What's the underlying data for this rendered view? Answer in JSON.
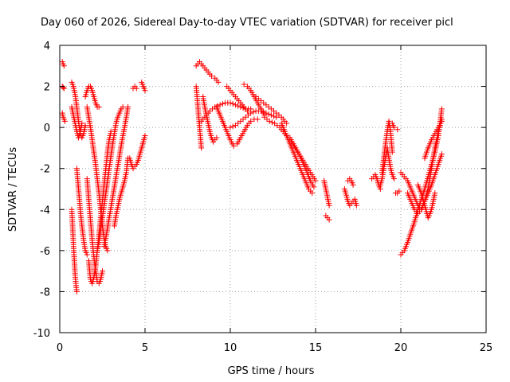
{
  "chart_data": {
    "type": "scatter",
    "title": "Day 060 of 2026, Sidereal Day-to-day VTEC variation (SDTVAR) for receiver picl",
    "xlabel": "GPS time / hours",
    "ylabel": "SDTVAR / TECUs",
    "xlim": [
      0,
      25
    ],
    "ylim": [
      -10,
      4
    ],
    "xticks": [
      0,
      5,
      10,
      15,
      20,
      25
    ],
    "yticks": [
      -10,
      -8,
      -6,
      -4,
      -2,
      0,
      2,
      4
    ],
    "grid": true,
    "marker": "+",
    "color": "#ff0000",
    "series": [
      {
        "name": "trace-01",
        "x": [
          0.15,
          0.2,
          0.25
        ],
        "y": [
          3.2,
          3.1,
          3.0
        ]
      },
      {
        "name": "trace-02",
        "x": [
          0.15,
          0.2,
          0.25
        ],
        "y": [
          2.0,
          1.95,
          1.9
        ]
      },
      {
        "name": "trace-03",
        "x": [
          0.15,
          0.2,
          0.3
        ],
        "y": [
          0.7,
          0.5,
          0.3
        ]
      },
      {
        "name": "trace-04",
        "x": [
          0.7,
          0.8,
          0.9,
          1.0,
          1.1,
          1.2,
          1.3,
          1.4,
          1.5
        ],
        "y": [
          2.2,
          2.0,
          1.6,
          1.0,
          0.3,
          -0.3,
          -0.5,
          -0.3,
          0.1
        ]
      },
      {
        "name": "trace-05",
        "x": [
          0.7,
          0.8,
          0.9,
          1.0,
          1.1,
          1.2,
          1.3
        ],
        "y": [
          1.0,
          0.6,
          0.2,
          -0.2,
          -0.5,
          -0.2,
          0.2
        ]
      },
      {
        "name": "trace-06",
        "x": [
          0.7,
          0.75,
          0.8,
          0.85,
          0.9,
          0.95,
          1.0
        ],
        "y": [
          -4.0,
          -4.8,
          -5.6,
          -6.4,
          -7.2,
          -7.7,
          -8.0
        ]
      },
      {
        "name": "trace-07",
        "x": [
          1.0,
          1.1,
          1.2,
          1.3,
          1.4,
          1.5,
          1.6
        ],
        "y": [
          -2.0,
          -3.0,
          -4.0,
          -4.8,
          -5.5,
          -6.0,
          -6.2
        ]
      },
      {
        "name": "trace-08",
        "x": [
          1.5,
          1.6,
          1.7,
          1.8,
          1.9,
          2.0,
          2.1,
          2.2,
          2.3
        ],
        "y": [
          1.5,
          1.8,
          2.0,
          2.0,
          1.8,
          1.5,
          1.2,
          1.0,
          1.0
        ]
      },
      {
        "name": "trace-09",
        "x": [
          1.6,
          1.7,
          1.8,
          1.9,
          2.0,
          2.1,
          2.2,
          2.3,
          2.4,
          2.5,
          2.6,
          2.7,
          2.8
        ],
        "y": [
          1.0,
          0.5,
          0.0,
          -0.6,
          -1.2,
          -1.8,
          -2.5,
          -3.2,
          -4.0,
          -4.8,
          -5.4,
          -5.8,
          -6.0
        ]
      },
      {
        "name": "trace-10",
        "x": [
          1.6,
          1.7,
          1.8,
          1.9,
          2.0,
          2.1,
          2.2,
          2.3,
          2.4,
          2.5
        ],
        "y": [
          -2.5,
          -3.5,
          -4.5,
          -5.5,
          -6.3,
          -7.0,
          -7.5,
          -7.6,
          -7.4,
          -7.0
        ]
      },
      {
        "name": "trace-11",
        "x": [
          1.7,
          1.8,
          1.9,
          2.0,
          2.1,
          2.2,
          2.3,
          2.4,
          2.5,
          2.6,
          2.7,
          2.8,
          2.9,
          3.0
        ],
        "y": [
          -6.5,
          -7.4,
          -7.6,
          -7.3,
          -6.8,
          -6.0,
          -5.2,
          -4.4,
          -3.6,
          -2.8,
          -2.0,
          -1.2,
          -0.6,
          -0.2
        ]
      },
      {
        "name": "trace-12",
        "x": [
          2.2,
          2.3,
          2.4,
          2.5,
          2.6,
          2.7,
          2.8,
          2.9,
          3.0,
          3.1,
          3.2,
          3.3,
          3.4,
          3.5,
          3.6,
          3.7
        ],
        "y": [
          -6.0,
          -5.6,
          -5.0,
          -4.4,
          -3.8,
          -3.2,
          -2.6,
          -2.0,
          -1.4,
          -0.8,
          -0.3,
          0.2,
          0.5,
          0.7,
          0.9,
          1.0
        ]
      },
      {
        "name": "trace-13",
        "x": [
          2.6,
          2.7,
          2.8,
          2.9,
          3.0,
          3.1,
          3.2,
          3.3,
          3.4,
          3.5,
          3.6,
          3.7,
          3.8,
          3.9,
          4.0
        ],
        "y": [
          -5.8,
          -5.4,
          -4.9,
          -4.4,
          -3.9,
          -3.4,
          -2.9,
          -2.4,
          -1.9,
          -1.4,
          -0.9,
          -0.4,
          0.0,
          0.5,
          1.0
        ]
      },
      {
        "name": "trace-14",
        "x": [
          3.2,
          3.3,
          3.4,
          3.5,
          3.6,
          3.7,
          3.8,
          3.9,
          4.0
        ],
        "y": [
          -4.8,
          -4.3,
          -3.9,
          -3.5,
          -3.2,
          -2.9,
          -2.6,
          -2.2,
          -1.5
        ]
      },
      {
        "name": "trace-15",
        "x": [
          4.1,
          4.2,
          4.3,
          4.4,
          4.5,
          4.6,
          4.7,
          4.8,
          4.9,
          5.0
        ],
        "y": [
          -1.5,
          -1.8,
          -2.0,
          -1.9,
          -1.8,
          -1.6,
          -1.3,
          -1.0,
          -0.7,
          -0.4
        ]
      },
      {
        "name": "trace-16",
        "x": [
          4.3,
          4.4,
          4.5
        ],
        "y": [
          1.9,
          2.0,
          1.9
        ]
      },
      {
        "name": "trace-17",
        "x": [
          4.8,
          4.85,
          4.9,
          4.95,
          5.0
        ],
        "y": [
          2.2,
          2.1,
          2.0,
          1.9,
          1.8
        ]
      },
      {
        "name": "trace-18",
        "x": [
          8.0,
          8.1,
          8.2,
          8.3,
          8.5,
          8.7,
          8.9,
          9.1,
          9.3
        ],
        "y": [
          3.0,
          3.1,
          3.2,
          3.1,
          2.9,
          2.7,
          2.5,
          2.4,
          2.2
        ]
      },
      {
        "name": "trace-19",
        "x": [
          8.0,
          8.05,
          8.1,
          8.15,
          8.2,
          8.25,
          8.3
        ],
        "y": [
          2.0,
          1.5,
          1.0,
          0.5,
          0.0,
          -0.5,
          -1.0
        ]
      },
      {
        "name": "trace-20",
        "x": [
          8.4,
          8.5,
          8.6,
          8.7,
          8.8,
          8.9,
          9.0,
          9.1,
          9.2
        ],
        "y": [
          1.5,
          1.0,
          0.6,
          0.2,
          -0.2,
          -0.5,
          -0.7,
          -0.6,
          -0.5
        ]
      },
      {
        "name": "trace-21",
        "x": [
          8.2,
          8.5,
          8.8,
          9.1,
          9.4,
          9.7,
          10.0,
          10.3,
          10.6,
          10.9,
          11.2
        ],
        "y": [
          0.2,
          0.5,
          0.8,
          1.0,
          1.1,
          1.2,
          1.2,
          1.1,
          1.0,
          0.9,
          0.9
        ]
      },
      {
        "name": "trace-22",
        "x": [
          9.2,
          9.4,
          9.6,
          9.8,
          10.0,
          10.2,
          10.4,
          10.6,
          10.8,
          11.0,
          11.2,
          11.4,
          11.6
        ],
        "y": [
          1.0,
          0.6,
          0.2,
          -0.2,
          -0.6,
          -0.9,
          -0.8,
          -0.5,
          -0.2,
          0.1,
          0.3,
          0.4,
          0.4
        ]
      },
      {
        "name": "trace-23",
        "x": [
          9.8,
          10.0,
          10.2,
          10.4,
          10.6,
          10.8,
          11.0
        ],
        "y": [
          2.0,
          1.8,
          1.6,
          1.4,
          1.2,
          1.0,
          0.8
        ]
      },
      {
        "name": "trace-24",
        "x": [
          10.8,
          11.0,
          11.2,
          11.4,
          11.6,
          11.8,
          12.0
        ],
        "y": [
          2.1,
          2.0,
          1.8,
          1.5,
          1.2,
          0.9,
          0.6
        ]
      },
      {
        "name": "trace-25",
        "x": [
          10.0,
          10.3,
          10.6,
          10.9,
          11.2,
          11.5,
          11.8,
          12.1,
          12.4,
          12.7
        ],
        "y": [
          0.0,
          0.1,
          0.3,
          0.5,
          0.7,
          0.8,
          0.8,
          0.7,
          0.6,
          0.5
        ]
      },
      {
        "name": "trace-26",
        "x": [
          11.5,
          11.8,
          12.1,
          12.4,
          12.7,
          13.0,
          13.3
        ],
        "y": [
          1.5,
          1.3,
          1.1,
          0.9,
          0.7,
          0.5,
          0.2
        ]
      },
      {
        "name": "trace-27",
        "x": [
          12.0,
          12.3,
          12.6,
          12.9,
          13.2,
          13.5,
          13.8,
          14.1,
          14.4,
          14.7,
          15.0
        ],
        "y": [
          0.5,
          0.3,
          0.2,
          0.0,
          -0.3,
          -0.6,
          -1.0,
          -1.4,
          -1.8,
          -2.2,
          -2.6
        ]
      },
      {
        "name": "trace-28",
        "x": [
          13.0,
          13.2,
          13.4,
          13.6,
          13.8,
          14.0,
          14.2,
          14.4,
          14.6,
          14.8
        ],
        "y": [
          0.2,
          -0.2,
          -0.6,
          -1.0,
          -1.4,
          -1.8,
          -2.2,
          -2.6,
          -3.0,
          -3.2
        ]
      },
      {
        "name": "trace-29",
        "x": [
          13.5,
          13.7,
          13.9,
          14.1,
          14.3,
          14.5,
          14.7,
          14.9
        ],
        "y": [
          -0.5,
          -0.8,
          -1.1,
          -1.4,
          -1.8,
          -2.2,
          -2.6,
          -2.9
        ]
      },
      {
        "name": "trace-30",
        "x": [
          15.5,
          15.55,
          15.6,
          15.65,
          15.7,
          15.75,
          15.8
        ],
        "y": [
          -2.6,
          -2.8,
          -3.0,
          -3.2,
          -3.4,
          -3.6,
          -3.8
        ]
      },
      {
        "name": "trace-31",
        "x": [
          15.6,
          15.7,
          15.8
        ],
        "y": [
          -4.3,
          -4.4,
          -4.5
        ]
      },
      {
        "name": "trace-32",
        "x": [
          16.7,
          16.8,
          16.9,
          17.0,
          17.1,
          17.2,
          17.3,
          17.4
        ],
        "y": [
          -3.0,
          -3.3,
          -3.6,
          -3.8,
          -3.7,
          -3.6,
          -3.5,
          -3.8
        ]
      },
      {
        "name": "trace-33",
        "x": [
          16.9,
          17.0,
          17.1,
          17.2
        ],
        "y": [
          -2.6,
          -2.5,
          -2.6,
          -2.8
        ]
      },
      {
        "name": "trace-34",
        "x": [
          18.3,
          18.4,
          18.5,
          18.6,
          18.7,
          18.8
        ],
        "y": [
          -2.5,
          -2.4,
          -2.3,
          -2.5,
          -2.8,
          -3.0
        ]
      },
      {
        "name": "trace-35",
        "x": [
          18.9,
          19.0,
          19.1,
          19.2,
          19.3,
          19.4,
          19.5
        ],
        "y": [
          -2.2,
          -1.5,
          -0.8,
          -0.2,
          0.3,
          -0.2,
          -1.2
        ]
      },
      {
        "name": "trace-36",
        "x": [
          18.8,
          18.9,
          19.0,
          19.1,
          19.2,
          19.3,
          19.4,
          19.5,
          19.6
        ],
        "y": [
          -2.8,
          -2.5,
          -2.0,
          -1.5,
          -1.0,
          -1.5,
          -2.0,
          -2.3,
          -2.5
        ]
      },
      {
        "name": "trace-37",
        "x": [
          19.5,
          19.6,
          19.8
        ],
        "y": [
          0.2,
          0.0,
          -0.1
        ]
      },
      {
        "name": "trace-38",
        "x": [
          19.7,
          19.8,
          19.9
        ],
        "y": [
          -3.2,
          -3.2,
          -3.1
        ]
      },
      {
        "name": "trace-39",
        "x": [
          20.0,
          20.2,
          20.4,
          20.6,
          20.8,
          21.0,
          21.2,
          21.4,
          21.6,
          21.8,
          22.0,
          22.2,
          22.4
        ],
        "y": [
          -2.2,
          -2.4,
          -2.6,
          -3.0,
          -3.4,
          -3.8,
          -4.0,
          -3.6,
          -3.0,
          -2.0,
          -1.0,
          -0.2,
          0.4
        ]
      },
      {
        "name": "trace-40",
        "x": [
          20.0,
          20.2,
          20.4,
          20.6,
          20.8,
          21.0,
          21.2,
          21.4,
          21.6,
          21.8,
          22.0,
          22.2,
          22.4
        ],
        "y": [
          -6.2,
          -6.0,
          -5.6,
          -5.1,
          -4.6,
          -4.0,
          -3.5,
          -3.0,
          -2.4,
          -1.8,
          -1.2,
          -0.4,
          0.9
        ]
      },
      {
        "name": "trace-41",
        "x": [
          20.4,
          20.6,
          20.8,
          21.0,
          21.2,
          21.4,
          21.6,
          21.8,
          22.0,
          22.2,
          22.4
        ],
        "y": [
          -3.2,
          -3.6,
          -4.0,
          -4.2,
          -4.0,
          -3.6,
          -3.2,
          -2.8,
          -2.3,
          -1.8,
          -1.3
        ]
      },
      {
        "name": "trace-42",
        "x": [
          21.0,
          21.2,
          21.4,
          21.6,
          21.8,
          22.0
        ],
        "y": [
          -2.8,
          -3.2,
          -3.8,
          -4.4,
          -4.0,
          -3.2
        ]
      },
      {
        "name": "trace-43",
        "x": [
          21.4,
          21.6,
          21.8,
          22.0,
          22.2,
          22.4
        ],
        "y": [
          -1.5,
          -1.0,
          -0.6,
          -0.3,
          0.0,
          0.3
        ]
      }
    ]
  }
}
